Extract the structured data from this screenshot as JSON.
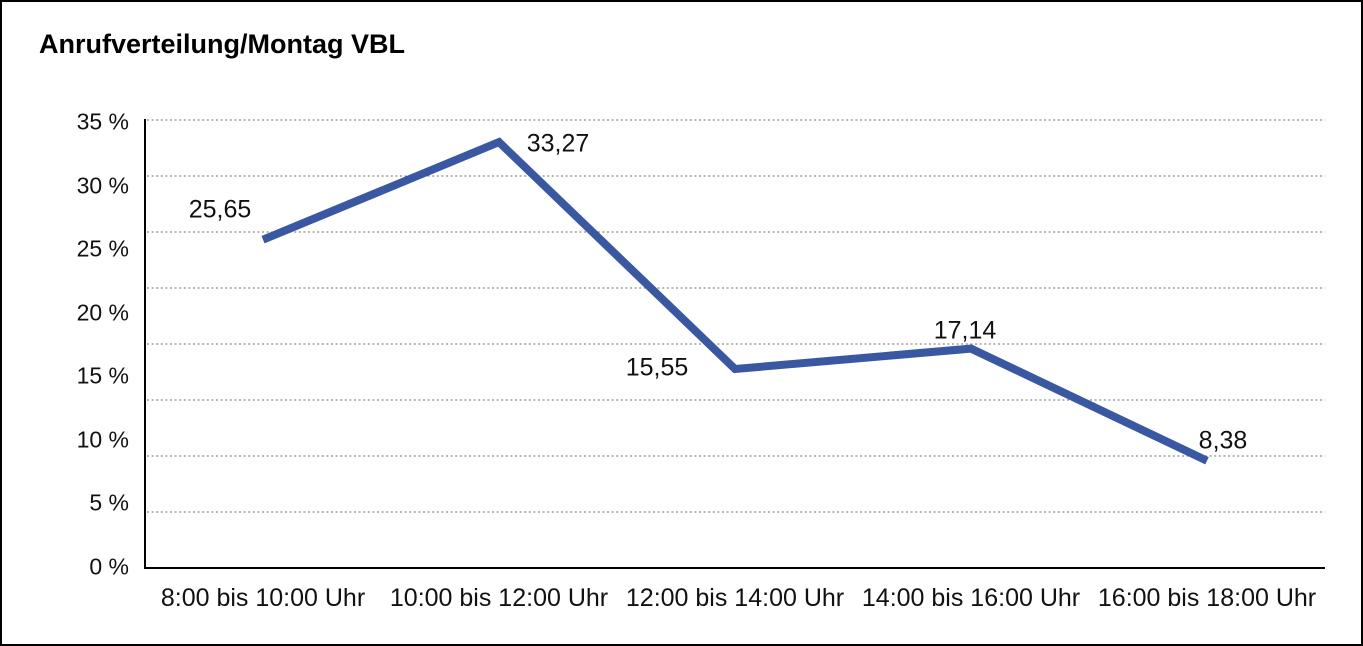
{
  "title": "Anrufverteilung/Montag VBL",
  "chart_data": {
    "type": "line",
    "title": "Anrufverteilung/Montag VBL",
    "categories": [
      "8:00 bis 10:00 Uhr",
      "10:00 bis 12:00 Uhr",
      "12:00 bis 14:00 Uhr",
      "14:00 bis 16:00 Uhr",
      "16:00 bis 18:00 Uhr"
    ],
    "values": [
      25.65,
      33.27,
      15.55,
      17.14,
      8.38
    ],
    "value_labels": [
      "25,65",
      "33,27",
      "15,55",
      "17,14",
      "8,38"
    ],
    "y_ticks": [
      "35 %",
      "30 %",
      "25 %",
      "20 %",
      "15 %",
      "10 %",
      "5 %",
      "0 %"
    ],
    "ylim": [
      0,
      35
    ],
    "xlabel": "",
    "ylabel": "",
    "grid": "horizontal-dotted",
    "legend": "none",
    "line_color": "#3A57A2",
    "axis_color": "#000000",
    "gridline_color": "#6E6E6E",
    "background": "#FFFFFF"
  }
}
